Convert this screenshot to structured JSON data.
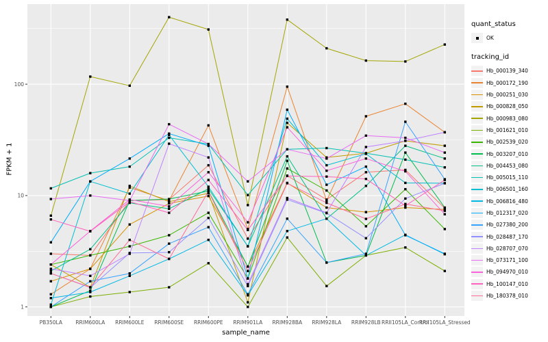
{
  "chart_data": {
    "type": "line",
    "title": "",
    "xlabel": "sample_name",
    "ylabel": "FPKM + 1",
    "y_scale": "log10",
    "y_ticks": [
      "1",
      "10",
      "100"
    ],
    "ylim": [
      0.85,
      530
    ],
    "grid": true,
    "panel_bg": "#EBEBEB",
    "grid_color": "#FFFFFF",
    "tick_text_color": "#4D4D4D",
    "point_color": "#000000",
    "categories": [
      "PB350LA",
      "RRIM600LA",
      "RRIM600LE",
      "RRIM600SE",
      "RRIM600PE",
      "RRIM901LA",
      "RRIM928BA",
      "RRIM928LA",
      "RRIM928LB",
      "RRII105LA_Control",
      "RRII105LA_Stressed"
    ],
    "legend": {
      "position": "right",
      "quant_status_title": "quant_status",
      "quant_status_items": [
        "OK"
      ],
      "tracking_id_title": "tracking_id"
    },
    "series": [
      {
        "name": "Hb_000139_340",
        "color": "#F8766D",
        "values": [
          3.0,
          2.9,
          9.0,
          9.2,
          18.7,
          4.1,
          15.1,
          9.2,
          16.2,
          17,
          7.7
        ]
      },
      {
        "name": "Hb_000172_190",
        "color": "#EA8331",
        "values": [
          1.3,
          2.2,
          11.8,
          9.0,
          42.7,
          5.0,
          95,
          9.0,
          51.5,
          66.7,
          37
        ]
      },
      {
        "name": "Hb_000251_030",
        "color": "#D89000",
        "values": [
          1.7,
          2.2,
          5.5,
          8.5,
          9.9,
          2.3,
          13,
          7.8,
          7.1,
          7.8,
          7.5
        ]
      },
      {
        "name": "Hb_000828_050",
        "color": "#C09B00",
        "values": [
          2.4,
          1.5,
          12.2,
          8.8,
          10.5,
          1.1,
          45,
          22,
          24,
          31,
          28
        ]
      },
      {
        "name": "Hb_000983_080",
        "color": "#A3A500",
        "values": [
          6.6,
          117,
          97,
          400,
          310,
          8.2,
          380,
          210,
          163,
          160,
          227
        ]
      },
      {
        "name": "Hb_001621_010",
        "color": "#7CAE00",
        "values": [
          1.0,
          1.24,
          1.36,
          1.5,
          2.47,
          1.0,
          4.2,
          1.54,
          2.9,
          3.42,
          2.1
        ]
      },
      {
        "name": "Hb_002539_020",
        "color": "#39B600",
        "values": [
          2.4,
          2.9,
          3.5,
          4.4,
          7.0,
          1.8,
          17.5,
          11.1,
          5.3,
          11.4,
          5.0
        ]
      },
      {
        "name": "Hb_003207_010",
        "color": "#00BB4E",
        "values": [
          1.0,
          1.4,
          9.0,
          9.3,
          11.0,
          2.3,
          20.5,
          2.5,
          2.9,
          24.3,
          7.8
        ]
      },
      {
        "name": "Hb_004453_080",
        "color": "#00C087",
        "values": [
          2.1,
          3.3,
          8.6,
          7.6,
          11.5,
          3.5,
          22.5,
          6.2,
          12.2,
          28,
          21.5
        ]
      },
      {
        "name": "Hb_005015_110",
        "color": "#00C0B2",
        "values": [
          11.6,
          15.9,
          18.2,
          33,
          29,
          10.1,
          26,
          26.7,
          24,
          21,
          17.9
        ]
      },
      {
        "name": "Hb_006501_160",
        "color": "#00BDD0",
        "values": [
          1.05,
          13.4,
          10.4,
          35,
          12.0,
          3.5,
          49,
          18.7,
          23.7,
          13,
          12.9
        ]
      },
      {
        "name": "Hb_006816_480",
        "color": "#00B8E5",
        "values": [
          1.2,
          1.36,
          1.9,
          2.7,
          4.0,
          1.27,
          4.8,
          6.2,
          2.9,
          4.44,
          2.97
        ]
      },
      {
        "name": "Hb_012317_020",
        "color": "#00ACFC",
        "values": [
          3.8,
          13.4,
          21.5,
          36,
          28,
          1.8,
          59,
          12.5,
          18.2,
          4.4,
          3.0
        ]
      },
      {
        "name": "Hb_027380_200",
        "color": "#35A2FF",
        "values": [
          1.0,
          1.7,
          2.0,
          3.7,
          5.2,
          1.3,
          6.2,
          2.5,
          3.0,
          46,
          14
        ]
      },
      {
        "name": "Hb_028487_170",
        "color": "#9590FF",
        "values": [
          2.0,
          1.49,
          3.05,
          3.1,
          6.3,
          1.54,
          9.2,
          6.95,
          4.14,
          9.4,
          12.9
        ]
      },
      {
        "name": "Hb_028707_070",
        "color": "#BF80FF",
        "values": [
          2.2,
          1.9,
          3.0,
          29.2,
          22,
          1.6,
          9.5,
          7.0,
          27.3,
          31,
          37
        ]
      },
      {
        "name": "Hb_073171_100",
        "color": "#E76BF3",
        "values": [
          9.3,
          10,
          9.0,
          43.7,
          29,
          13.4,
          26,
          21.5,
          34.5,
          33,
          24.3
        ]
      },
      {
        "name": "Hb_094970_010",
        "color": "#FA62DB",
        "values": [
          2.4,
          4.8,
          9.2,
          8.0,
          16.2,
          5.75,
          41,
          16.7,
          21.5,
          16.5,
          6.8
        ]
      },
      {
        "name": "Hb_100147_010",
        "color": "#FF62BC",
        "values": [
          6.1,
          4.77,
          8.8,
          7.0,
          13.8,
          4.9,
          15.0,
          14.8,
          14.1,
          8.1,
          13.8
        ]
      },
      {
        "name": "Hb_180378_010",
        "color": "#FF6A98",
        "values": [
          2.0,
          1.5,
          4.0,
          2.7,
          10.9,
          2.1,
          12.9,
          8.6,
          6.17,
          8.4,
          7.3
        ]
      }
    ]
  }
}
